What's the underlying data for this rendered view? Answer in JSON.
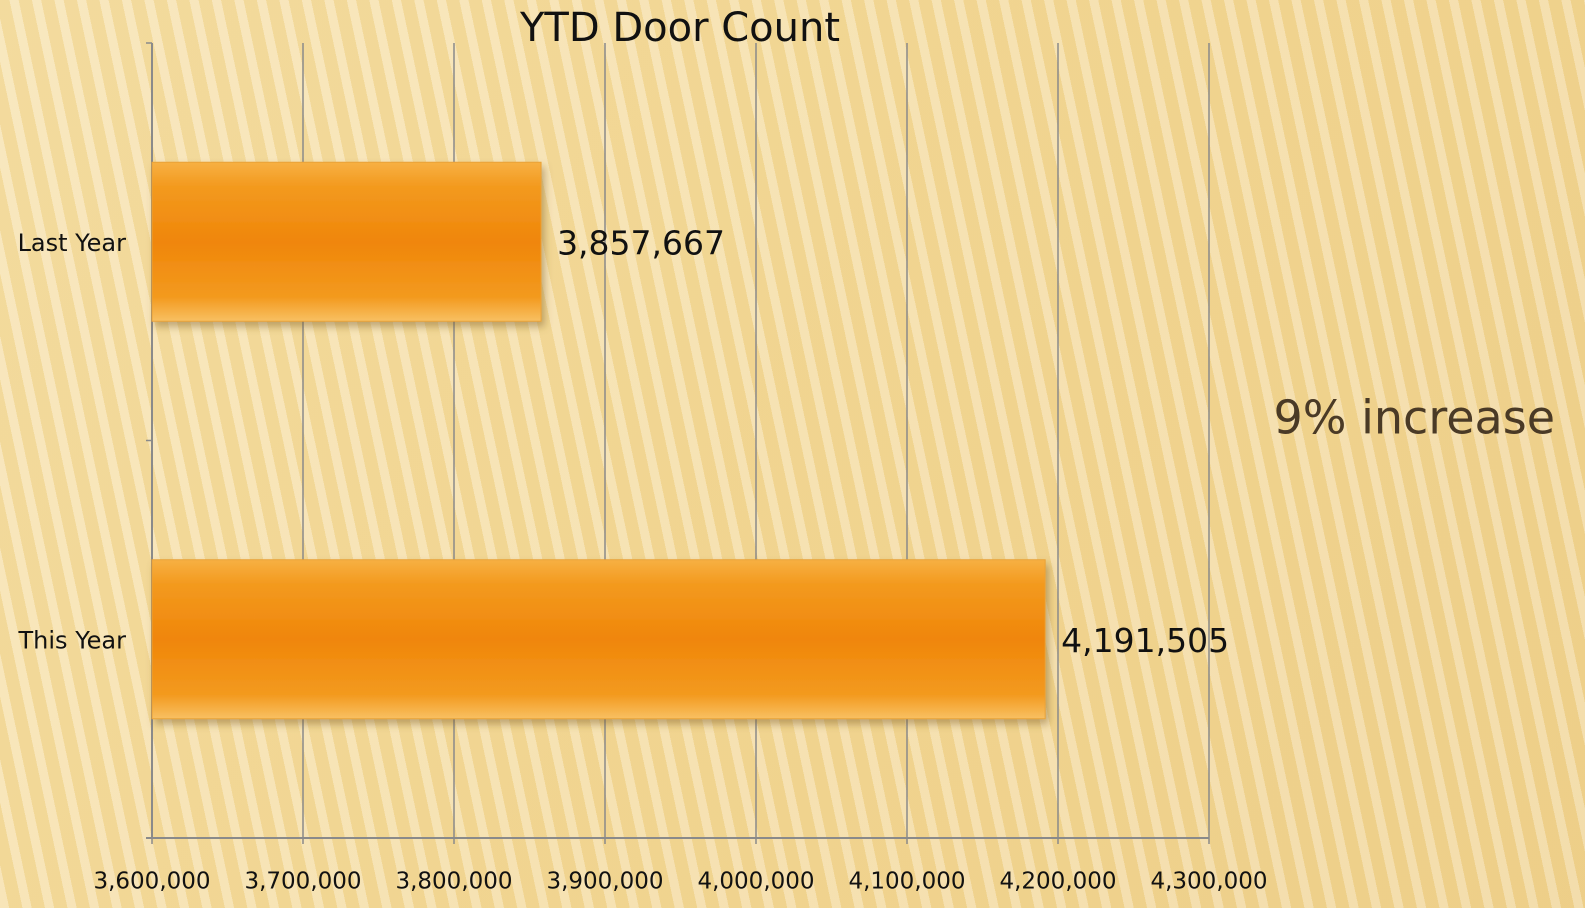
{
  "chart_data": {
    "type": "bar",
    "orientation": "horizontal",
    "title": "YTD Door Count",
    "categories": [
      "Last Year",
      "This Year"
    ],
    "values": [
      3857667,
      4191505
    ],
    "value_labels": [
      "3,857,667",
      "4,191,505"
    ],
    "color": "#f28a0c",
    "annotation": "9% increase",
    "xlim": [
      3600000,
      4300000
    ],
    "xticks": [
      {
        "value": 3600000,
        "label": "3,600,000"
      },
      {
        "value": 3700000,
        "label": "3,700,000"
      },
      {
        "value": 3800000,
        "label": "3,800,000"
      },
      {
        "value": 3900000,
        "label": "3,900,000"
      },
      {
        "value": 4000000,
        "label": "4,000,000"
      },
      {
        "value": 4100000,
        "label": "4,100,000"
      },
      {
        "value": 4200000,
        "label": "4,200,000"
      },
      {
        "value": 4300000,
        "label": "4,300,000"
      }
    ],
    "grid": true
  }
}
